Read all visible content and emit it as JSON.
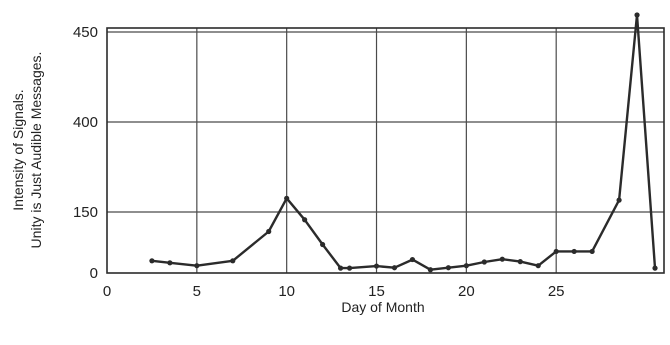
{
  "chart_data": {
    "type": "line",
    "title": "",
    "xlabel": "Day of Month",
    "ylabel_lines": [
      "Intensity of Signals.",
      "Unity is Just Audible Messages."
    ],
    "xlim": [
      0,
      31
    ],
    "x_ticks": [
      {
        "value": 0,
        "label": "0"
      },
      {
        "value": 5,
        "label": "5"
      },
      {
        "value": 10,
        "label": "10"
      },
      {
        "value": 15,
        "label": "15"
      },
      {
        "value": 20,
        "label": "20"
      },
      {
        "value": 25,
        "label": "25"
      }
    ],
    "y_ticks": [
      "0",
      "150",
      "400",
      "450"
    ],
    "y_scale": "nonlinear (tick labels as printed)",
    "grid": true,
    "legend": "none",
    "series": [
      {
        "x": [
          2.5,
          3.5,
          5.0,
          7.0,
          9.0,
          10.0,
          11.0,
          12.0,
          13.0,
          13.5,
          15.0,
          16.0,
          17.0,
          18.0,
          19.0,
          20.0,
          21.0,
          22.0,
          23.0,
          24.0,
          25.0,
          26.0,
          27.0,
          28.5,
          29.5,
          30.5
        ],
        "y": [
          30,
          25,
          18,
          30,
          102,
          188,
          131,
          70,
          12,
          12,
          17,
          13,
          33,
          8,
          13,
          18,
          27,
          34,
          28,
          18,
          53,
          53,
          53,
          183,
          470,
          12
        ]
      }
    ],
    "colors": {
      "line": "#2b2b2b",
      "grid": "#4a4a4a",
      "frame": "#2b2b2b"
    }
  }
}
